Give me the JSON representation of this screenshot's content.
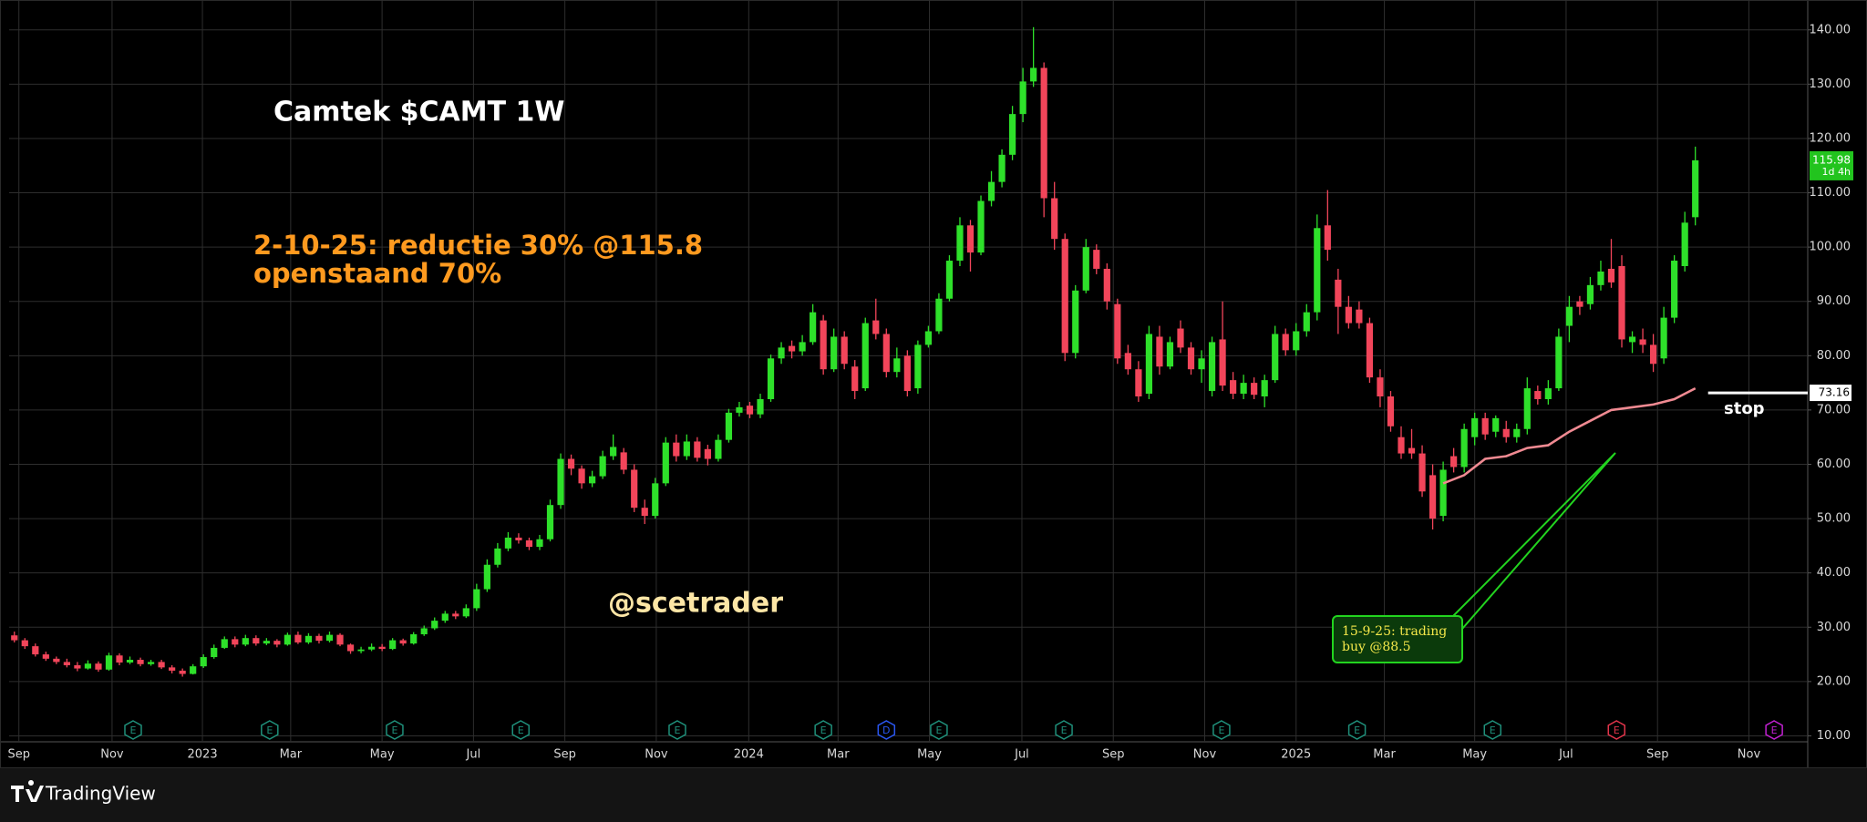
{
  "chart_data": {
    "type": "candlestick",
    "title": "Camtek $CAMT 1W",
    "note_lines": [
      "2-10-25: reductie 30% @115.8",
      "openstaand 70%"
    ],
    "watermark": "@scetrader",
    "callout": [
      "15-9-25: trading",
      "buy @88.5"
    ],
    "stop_label": "stop",
    "stop_level": 73.16,
    "last_price_label": "115.98",
    "last_price_countdown": "1d 4h",
    "up_color": "#2ee02a",
    "down_color": "#f2455a",
    "grid": true,
    "xlim": [
      -0.5,
      170.7
    ],
    "ylim": [
      8.9,
      145.5
    ],
    "xticks": [
      {
        "value": 0.43,
        "label": "Sep"
      },
      {
        "value": 9.3,
        "label": "Nov"
      },
      {
        "value": 17.9,
        "label": "2023"
      },
      {
        "value": 26.3,
        "label": "Mar"
      },
      {
        "value": 35,
        "label": "May"
      },
      {
        "value": 43.7,
        "label": "Jul"
      },
      {
        "value": 52.4,
        "label": "Sep"
      },
      {
        "value": 61.1,
        "label": "Nov"
      },
      {
        "value": 69.9,
        "label": "2024"
      },
      {
        "value": 78.4,
        "label": "Mar"
      },
      {
        "value": 87.1,
        "label": "May"
      },
      {
        "value": 95.9,
        "label": "Jul"
      },
      {
        "value": 104.6,
        "label": "Sep"
      },
      {
        "value": 113.3,
        "label": "Nov"
      },
      {
        "value": 122,
        "label": "2025"
      },
      {
        "value": 130.4,
        "label": "Mar"
      },
      {
        "value": 139,
        "label": "May"
      },
      {
        "value": 147.7,
        "label": "Jul"
      },
      {
        "value": 156.4,
        "label": "Sep"
      },
      {
        "value": 165.1,
        "label": "Nov"
      }
    ],
    "yticks": [
      {
        "value": 10,
        "label": "10.00"
      },
      {
        "value": 20,
        "label": "20.00"
      },
      {
        "value": 30,
        "label": "30.00"
      },
      {
        "value": 40,
        "label": "40.00"
      },
      {
        "value": 50,
        "label": "50.00"
      },
      {
        "value": 60,
        "label": "60.00"
      },
      {
        "value": 70,
        "label": "70.00"
      },
      {
        "value": 80,
        "label": "80.00"
      },
      {
        "value": 90,
        "label": "90.00"
      },
      {
        "value": 100,
        "label": "100.00"
      },
      {
        "value": 110,
        "label": "110.00"
      },
      {
        "value": 120,
        "label": "120.00"
      },
      {
        "value": 130,
        "label": "130.00"
      },
      {
        "value": 140,
        "label": "140.00"
      }
    ],
    "open": [
      28.5,
      27.6,
      26.5,
      25.0,
      24.2,
      23.6,
      23.0,
      22.4,
      23.3,
      22.2,
      24.8,
      23.5,
      24.0,
      23.2,
      23.6,
      22.6,
      22.0,
      21.4,
      22.8,
      24.5,
      26.2,
      27.8,
      26.8,
      28.0,
      27.0,
      27.5,
      26.8,
      28.6,
      27.2,
      28.4,
      27.5,
      28.6,
      26.8,
      25.6,
      25.9,
      26.4,
      26.0,
      27.6,
      27.0,
      28.7,
      29.8,
      31.2,
      32.5,
      32.0,
      33.5,
      37.0,
      41.5,
      44.5,
      46.5,
      46.0,
      44.8,
      46.2,
      52.5,
      61.0,
      59.2,
      56.5,
      57.8,
      61.5,
      62.2,
      59.0,
      52.0,
      50.5,
      56.5,
      64.0,
      61.5,
      64.2,
      62.8,
      61.0,
      64.5,
      69.5,
      70.8,
      69.2,
      72.0,
      79.5,
      81.8,
      80.8,
      82.5,
      86.5,
      77.5,
      83.5,
      78.0,
      74.0,
      86.5,
      84.0,
      77.0,
      80.0,
      74.0,
      82.0,
      84.5,
      90.5,
      97.5,
      104.0,
      99.0,
      108.5,
      112.0,
      117.0,
      124.5,
      130.5,
      133.0,
      109.0,
      101.5,
      80.5,
      92.0,
      99.5,
      96.0,
      89.5,
      80.5,
      77.5,
      73.0,
      83.5,
      78.0,
      85.0,
      81.5,
      77.5,
      73.5,
      83.0,
      75.5,
      73.0,
      75.0,
      72.5,
      75.5,
      84.0,
      81.0,
      84.5,
      88.0,
      104.0,
      94.0,
      89.0,
      88.5,
      86.0,
      76.0,
      72.5,
      65.0,
      63.0,
      62.0,
      58.0,
      50.5,
      61.5,
      59.5,
      65.0,
      68.5,
      66.0,
      66.5,
      65.0,
      66.5,
      73.5,
      72.0,
      74.0,
      85.5,
      90.0,
      89.5,
      93.0,
      96.0,
      96.5,
      82.5,
      83.0,
      82.0,
      79.5,
      87.0,
      96.5,
      105.5
    ],
    "high": [
      29.2,
      28.0,
      27.0,
      25.5,
      24.6,
      24.2,
      23.6,
      23.9,
      23.7,
      25.3,
      25.2,
      24.6,
      24.4,
      24.0,
      24.0,
      23.0,
      22.4,
      23.2,
      25.0,
      26.8,
      28.3,
      28.3,
      28.6,
      28.5,
      28.0,
      27.8,
      29.0,
      29.2,
      28.9,
      28.8,
      29.2,
      28.9,
      27.0,
      26.4,
      27.0,
      26.9,
      28.0,
      27.9,
      29.1,
      30.3,
      31.8,
      33.0,
      33.0,
      34.2,
      38.0,
      42.5,
      45.5,
      47.5,
      47.3,
      46.5,
      47.0,
      53.5,
      62.0,
      61.8,
      59.8,
      58.8,
      62.5,
      65.5,
      63.0,
      60.0,
      53.5,
      57.5,
      65.0,
      65.5,
      65.5,
      65.0,
      63.6,
      65.5,
      70.2,
      71.5,
      71.5,
      73.0,
      80.2,
      82.5,
      82.8,
      83.8,
      89.5,
      87.5,
      85.0,
      84.5,
      79.2,
      87.0,
      90.5,
      85.0,
      81.5,
      81.0,
      82.8,
      85.5,
      91.5,
      98.5,
      105.5,
      105.0,
      109.5,
      114.0,
      118.0,
      126.0,
      133.0,
      140.5,
      134.0,
      112.0,
      102.5,
      93.0,
      101.5,
      100.5,
      97.0,
      90.5,
      82.0,
      79.0,
      85.5,
      85.5,
      83.5,
      86.5,
      82.5,
      81.0,
      83.5,
      90.0,
      77.0,
      76.5,
      76.0,
      76.5,
      85.5,
      85.0,
      86.0,
      89.5,
      106.0,
      110.5,
      96.0,
      91.0,
      90.0,
      87.0,
      77.5,
      73.5,
      67.0,
      66.5,
      63.5,
      60.0,
      60.5,
      63.0,
      67.5,
      69.5,
      69.5,
      69.0,
      68.0,
      67.5,
      76.0,
      74.5,
      75.5,
      85.0,
      91.0,
      91.0,
      94.5,
      97.5,
      101.5,
      98.5,
      84.5,
      85.0,
      84.0,
      89.0,
      98.5,
      106.5,
      118.5
    ],
    "low": [
      27.2,
      26.0,
      24.6,
      23.8,
      23.2,
      22.6,
      21.9,
      22.2,
      21.8,
      22.0,
      23.0,
      23.2,
      22.8,
      22.9,
      22.3,
      21.5,
      20.9,
      21.3,
      22.5,
      24.2,
      26.0,
      26.3,
      26.5,
      26.6,
      26.7,
      26.3,
      26.6,
      26.9,
      26.9,
      27.0,
      27.2,
      26.5,
      25.1,
      25.2,
      25.6,
      25.6,
      25.8,
      26.6,
      26.8,
      28.4,
      29.5,
      30.8,
      31.5,
      31.7,
      33.0,
      36.5,
      41.0,
      44.0,
      45.4,
      44.2,
      44.2,
      45.8,
      51.8,
      58.0,
      55.5,
      55.8,
      57.3,
      60.8,
      58.2,
      51.2,
      49.0,
      50.0,
      56.0,
      60.5,
      60.8,
      60.5,
      59.8,
      60.5,
      64.0,
      68.8,
      68.5,
      68.5,
      71.5,
      78.5,
      79.5,
      80.0,
      82.0,
      76.5,
      77.0,
      77.5,
      72.0,
      73.5,
      83.0,
      76.0,
      76.0,
      72.5,
      73.0,
      81.5,
      84.0,
      90.0,
      96.5,
      95.5,
      98.5,
      107.5,
      111.0,
      116.0,
      123.0,
      129.5,
      105.5,
      99.5,
      79.0,
      79.5,
      91.5,
      95.0,
      88.5,
      78.5,
      76.5,
      71.5,
      72.0,
      76.5,
      77.5,
      80.5,
      76.5,
      75.0,
      72.5,
      73.5,
      72.0,
      72.0,
      72.0,
      70.5,
      75.0,
      80.0,
      80.0,
      83.5,
      86.5,
      97.5,
      84.0,
      85.0,
      85.0,
      75.0,
      70.5,
      66.0,
      61.0,
      61.0,
      54.0,
      48.0,
      49.5,
      58.5,
      58.5,
      63.5,
      64.5,
      65.0,
      64.0,
      64.0,
      65.5,
      71.0,
      71.0,
      73.5,
      82.5,
      87.5,
      88.5,
      92.0,
      92.5,
      81.5,
      80.5,
      80.5,
      77.0,
      78.5,
      86.0,
      95.5,
      104.0
    ],
    "close": [
      27.6,
      26.5,
      25.0,
      24.2,
      23.6,
      23.0,
      22.4,
      23.3,
      22.2,
      24.8,
      23.5,
      24.0,
      23.2,
      23.6,
      22.6,
      22.0,
      21.4,
      22.8,
      24.5,
      26.2,
      27.8,
      26.8,
      28.0,
      27.0,
      27.5,
      26.8,
      28.6,
      27.2,
      28.4,
      27.5,
      28.6,
      26.8,
      25.6,
      25.9,
      26.4,
      26.0,
      27.6,
      27.0,
      28.7,
      29.8,
      31.2,
      32.5,
      32.0,
      33.5,
      37.0,
      41.5,
      44.5,
      46.5,
      46.0,
      44.8,
      46.2,
      52.5,
      61.0,
      59.2,
      56.5,
      57.8,
      61.5,
      63.2,
      59.0,
      52.0,
      50.5,
      56.5,
      64.0,
      61.5,
      64.2,
      61.2,
      61.0,
      64.5,
      69.5,
      70.5,
      69.2,
      72.0,
      79.5,
      81.5,
      80.8,
      82.5,
      88.0,
      77.5,
      83.5,
      78.5,
      73.5,
      86.0,
      84.0,
      77.0,
      79.5,
      73.5,
      82.0,
      84.5,
      90.5,
      97.5,
      104.0,
      99.0,
      108.5,
      112.0,
      117.0,
      124.5,
      130.5,
      133.0,
      109.0,
      101.5,
      80.5,
      92.0,
      100.0,
      96.0,
      90.0,
      79.5,
      77.5,
      72.5,
      84.0,
      78.0,
      82.5,
      81.5,
      77.5,
      79.5,
      82.5,
      74.5,
      73.0,
      75.0,
      72.8,
      75.5,
      84.0,
      81.0,
      84.5,
      88.0,
      103.5,
      99.5,
      89.0,
      86.0,
      86.0,
      76.0,
      72.5,
      67.0,
      62.0,
      62.0,
      55.0,
      50.0,
      59.0,
      59.5,
      66.5,
      68.5,
      65.5,
      68.5,
      65.0,
      66.5,
      74.0,
      72.0,
      74.0,
      83.5,
      89.0,
      89.0,
      93.0,
      95.5,
      93.5,
      83.0,
      83.5,
      82.0,
      78.5,
      87.0,
      97.5,
      104.5,
      115.98
    ],
    "ma": {
      "color": "#f08a92",
      "x": [
        136,
        138,
        140,
        142,
        144,
        146,
        148,
        150,
        152,
        154,
        156,
        158,
        160
      ],
      "values": [
        56.5,
        58.0,
        61.0,
        61.5,
        63.0,
        63.5,
        66.0,
        68.0,
        70.0,
        70.5,
        71.0,
        72.0,
        74.0
      ]
    },
    "events": [
      {
        "x": 11.3,
        "label": "E",
        "color": "#1f8f7a"
      },
      {
        "x": 24.3,
        "label": "E",
        "color": "#1f8f7a"
      },
      {
        "x": 36.2,
        "label": "E",
        "color": "#1f8f7a"
      },
      {
        "x": 48.2,
        "label": "E",
        "color": "#1f8f7a"
      },
      {
        "x": 63.1,
        "label": "E",
        "color": "#1f8f7a"
      },
      {
        "x": 77,
        "label": "E",
        "color": "#1f8f7a"
      },
      {
        "x": 83,
        "label": "D",
        "color": "#2a56f0"
      },
      {
        "x": 88,
        "label": "E",
        "color": "#1f8f7a"
      },
      {
        "x": 99.9,
        "label": "E",
        "color": "#1f8f7a"
      },
      {
        "x": 114.9,
        "label": "E",
        "color": "#1f8f7a"
      },
      {
        "x": 127.8,
        "label": "E",
        "color": "#1f8f7a"
      },
      {
        "x": 140.7,
        "label": "E",
        "color": "#1f8f7a"
      },
      {
        "x": 152.5,
        "label": "E",
        "color": "#e0344a"
      },
      {
        "x": 167.5,
        "label": "E",
        "color": "#c020d0"
      }
    ]
  },
  "footer": {
    "brand": "TradingView"
  }
}
